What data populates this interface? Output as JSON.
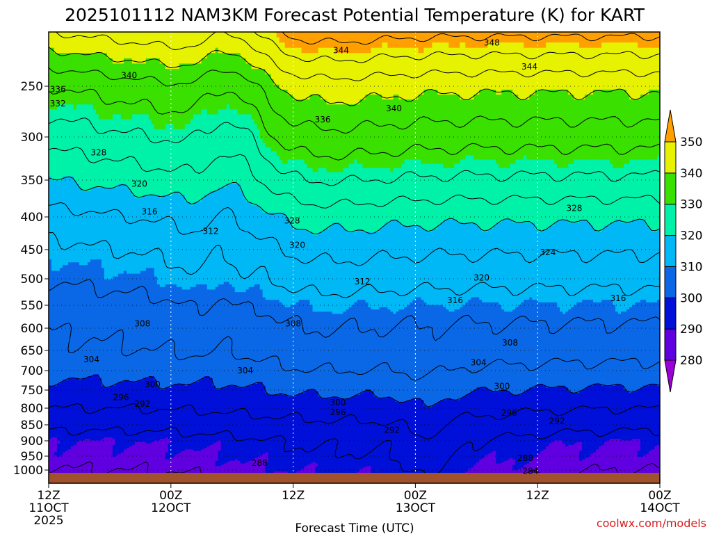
{
  "chart_data": {
    "type": "heatmap",
    "title": "2025101112 NAM3KM Forecast Potential Temperature (K) for KART",
    "xlabel": "Forecast Time (UTC)",
    "ylabel": "",
    "credit": "coolwx.com/models",
    "x_ticks": [
      {
        "hour": 0,
        "line1": "12Z",
        "line2": "11OCT",
        "line3": "2025"
      },
      {
        "hour": 12,
        "line1": "00Z",
        "line2": "12OCT",
        "line3": ""
      },
      {
        "hour": 24,
        "line1": "12Z",
        "line2": "",
        "line3": ""
      },
      {
        "hour": 36,
        "line1": "00Z",
        "line2": "13OCT",
        "line3": ""
      },
      {
        "hour": 48,
        "line1": "12Z",
        "line2": "",
        "line3": ""
      },
      {
        "hour": 60,
        "line1": "00Z",
        "line2": "14OCT",
        "line3": ""
      }
    ],
    "y_ticks": [
      250,
      300,
      350,
      400,
      450,
      500,
      550,
      600,
      650,
      700,
      750,
      800,
      850,
      900,
      950,
      1000
    ],
    "y_range": [
      200,
      1025
    ],
    "x_range_hours": [
      0,
      60
    ],
    "colorbar": {
      "levels": [
        280,
        290,
        300,
        310,
        320,
        330,
        340,
        350
      ],
      "colors": [
        "#9b00d8",
        "#6000e0",
        "#0010d8",
        "#0a68e6",
        "#00b8f6",
        "#00f2a8",
        "#3ae000",
        "#e6f200",
        "#ffa000"
      ],
      "extend": "both"
    },
    "ground_color": "#a0522d",
    "contour_labels": [
      {
        "text": "348",
        "hour": 43.5,
        "p": 210
      },
      {
        "text": "344",
        "hour": 28.7,
        "p": 217
      },
      {
        "text": "344",
        "hour": 47.2,
        "p": 232
      },
      {
        "text": "340",
        "hour": 7.9,
        "p": 240
      },
      {
        "text": "340",
        "hour": 33.9,
        "p": 272
      },
      {
        "text": "336",
        "hour": 0.9,
        "p": 253
      },
      {
        "text": "332",
        "hour": 0.9,
        "p": 267
      },
      {
        "text": "336",
        "hour": 26.9,
        "p": 283
      },
      {
        "text": "328",
        "hour": 4.9,
        "p": 318
      },
      {
        "text": "320",
        "hour": 8.9,
        "p": 355
      },
      {
        "text": "328",
        "hour": 51.6,
        "p": 388
      },
      {
        "text": "316",
        "hour": 9.9,
        "p": 393
      },
      {
        "text": "328",
        "hour": 23.9,
        "p": 406
      },
      {
        "text": "312",
        "hour": 15.9,
        "p": 422
      },
      {
        "text": "320",
        "hour": 24.4,
        "p": 443
      },
      {
        "text": "324",
        "hour": 49.0,
        "p": 455
      },
      {
        "text": "312",
        "hour": 30.8,
        "p": 505
      },
      {
        "text": "320",
        "hour": 42.5,
        "p": 498
      },
      {
        "text": "316",
        "hour": 39.9,
        "p": 541
      },
      {
        "text": "316",
        "hour": 55.9,
        "p": 537
      },
      {
        "text": "308",
        "hour": 9.2,
        "p": 590
      },
      {
        "text": "308",
        "hour": 24.0,
        "p": 590
      },
      {
        "text": "308",
        "hour": 45.3,
        "p": 633
      },
      {
        "text": "304",
        "hour": 4.2,
        "p": 672
      },
      {
        "text": "304",
        "hour": 42.2,
        "p": 680
      },
      {
        "text": "304",
        "hour": 19.3,
        "p": 700
      },
      {
        "text": "300",
        "hour": 10.2,
        "p": 736
      },
      {
        "text": "300",
        "hour": 44.5,
        "p": 740
      },
      {
        "text": "296",
        "hour": 7.1,
        "p": 770
      },
      {
        "text": "300",
        "hour": 28.4,
        "p": 785
      },
      {
        "text": "292",
        "hour": 9.2,
        "p": 788
      },
      {
        "text": "296",
        "hour": 28.4,
        "p": 813
      },
      {
        "text": "296",
        "hour": 45.2,
        "p": 815
      },
      {
        "text": "292",
        "hour": 49.9,
        "p": 839
      },
      {
        "text": "292",
        "hour": 33.7,
        "p": 866
      },
      {
        "text": "288",
        "hour": 20.7,
        "p": 975
      },
      {
        "text": "288",
        "hour": 46.8,
        "p": 957
      },
      {
        "text": "284",
        "hour": 47.3,
        "p": 1004
      }
    ]
  }
}
